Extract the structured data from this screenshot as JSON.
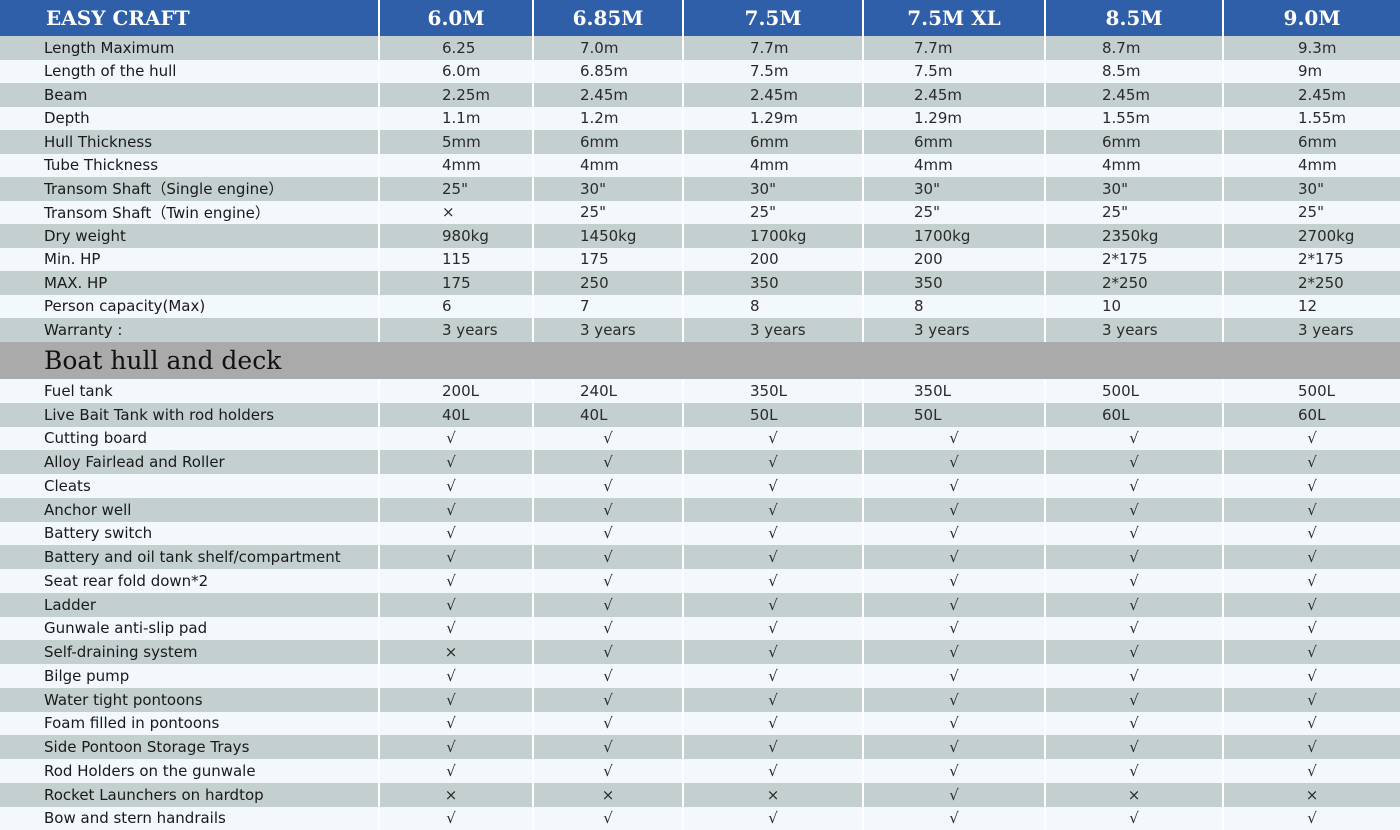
{
  "header": {
    "brand": "EASY  CRAFT",
    "models": [
      "6.0M",
      "6.85M",
      "7.5M",
      "7.5M XL",
      "8.5M",
      "9.0M"
    ]
  },
  "specs": [
    {
      "label": "Length Maximum",
      "values": [
        "6.25",
        "7.0m",
        "7.7m",
        "7.7m",
        "8.7m",
        "9.3m"
      ]
    },
    {
      "label": "Length of the hull",
      "values": [
        "6.0m",
        "6.85m",
        "7.5m",
        "7.5m",
        "8.5m",
        "9m"
      ]
    },
    {
      "label": "Beam",
      "values": [
        "2.25m",
        "2.45m",
        "2.45m",
        "2.45m",
        "2.45m",
        "2.45m"
      ]
    },
    {
      "label": "Depth",
      "values": [
        "1.1m",
        "1.2m",
        "1.29m",
        "1.29m",
        "1.55m",
        "1.55m"
      ]
    },
    {
      "label": "Hull Thickness",
      "values": [
        "5mm",
        "6mm",
        "6mm",
        "6mm",
        "6mm",
        "6mm"
      ]
    },
    {
      "label": "Tube Thickness",
      "values": [
        "4mm",
        "4mm",
        "4mm",
        "4mm",
        "4mm",
        "4mm"
      ]
    },
    {
      "label": "Transom Shaft（Single engine）",
      "values": [
        "25\"",
        "30\"",
        "30\"",
        "30\"",
        "30\"",
        "30\""
      ]
    },
    {
      "label": "Transom Shaft（Twin engine）",
      "values": [
        "×",
        "25\"",
        "25\"",
        "25\"",
        "25\"",
        "25\""
      ]
    },
    {
      "label": "Dry weight",
      "values": [
        "980kg",
        "1450kg",
        "1700kg",
        "1700kg",
        "2350kg",
        "2700kg"
      ]
    },
    {
      "label": "Min. HP",
      "values": [
        "115",
        "175",
        "200",
        "200",
        "2*175",
        "2*175"
      ]
    },
    {
      "label": "MAX. HP",
      "values": [
        "175",
        "250",
        "350",
        "350",
        "2*250",
        "2*250"
      ]
    },
    {
      "label": "Person capacity(Max)",
      "values": [
        "6",
        "7",
        "8",
        "8",
        "10",
        "12"
      ]
    },
    {
      "label": "Warranty :",
      "values": [
        "3 years",
        "3 years",
        "3 years",
        "3 years",
        "3 years",
        "3 years"
      ]
    }
  ],
  "section": {
    "title": "Boat hull and deck"
  },
  "features": [
    {
      "label": "Fuel tank",
      "values": [
        "200L",
        "240L",
        "350L",
        "350L",
        "500L",
        "500L"
      ]
    },
    {
      "label": "Live Bait Tank with rod holders",
      "values": [
        "40L",
        "40L",
        "50L",
        "50L",
        "60L",
        "60L"
      ]
    },
    {
      "label": "Cutting board",
      "values": [
        "√",
        "√",
        "√",
        "√",
        "√",
        "√"
      ]
    },
    {
      "label": "Alloy Fairlead and Roller",
      "values": [
        "√",
        "√",
        "√",
        "√",
        "√",
        "√"
      ]
    },
    {
      "label": "Cleats",
      "values": [
        "√",
        "√",
        "√",
        "√",
        "√",
        "√"
      ]
    },
    {
      "label": "Anchor well",
      "values": [
        "√",
        "√",
        "√",
        "√",
        "√",
        "√"
      ]
    },
    {
      "label": "Battery switch",
      "values": [
        "√",
        "√",
        "√",
        "√",
        "√",
        "√"
      ]
    },
    {
      "label": "Battery and oil tank shelf/compartment",
      "values": [
        "√",
        "√",
        "√",
        "√",
        "√",
        "√"
      ]
    },
    {
      "label": "Seat rear fold down*2",
      "values": [
        "√",
        "√",
        "√",
        "√",
        "√",
        "√"
      ]
    },
    {
      "label": "Ladder",
      "values": [
        "√",
        "√",
        "√",
        "√",
        "√",
        "√"
      ]
    },
    {
      "label": "Gunwale anti-slip pad",
      "values": [
        "√",
        "√",
        "√",
        "√",
        "√",
        "√"
      ]
    },
    {
      "label": "Self-draining system",
      "values": [
        "×",
        "√",
        "√",
        "√",
        "√",
        "√"
      ]
    },
    {
      "label": "Bilge pump",
      "values": [
        "√",
        "√",
        "√",
        "√",
        "√",
        "√"
      ]
    },
    {
      "label": "Water tight pontoons",
      "values": [
        "√",
        "√",
        "√",
        "√",
        "√",
        "√"
      ]
    },
    {
      "label": "Foam filled in pontoons",
      "values": [
        "√",
        "√",
        "√",
        "√",
        "√",
        "√"
      ]
    },
    {
      "label": "Side Pontoon Storage Trays",
      "values": [
        "√",
        "√",
        "√",
        "√",
        "√",
        "√"
      ]
    },
    {
      "label": "Rod Holders on the gunwale",
      "values": [
        "√",
        "√",
        "√",
        "√",
        "√",
        "√"
      ]
    },
    {
      "label": "Rocket Launchers on hardtop",
      "values": [
        "×",
        "×",
        "×",
        "√",
        "×",
        "×"
      ]
    },
    {
      "label": "Bow and stern handrails",
      "values": [
        "√",
        "√",
        "√",
        "√",
        "√",
        "√"
      ]
    }
  ]
}
